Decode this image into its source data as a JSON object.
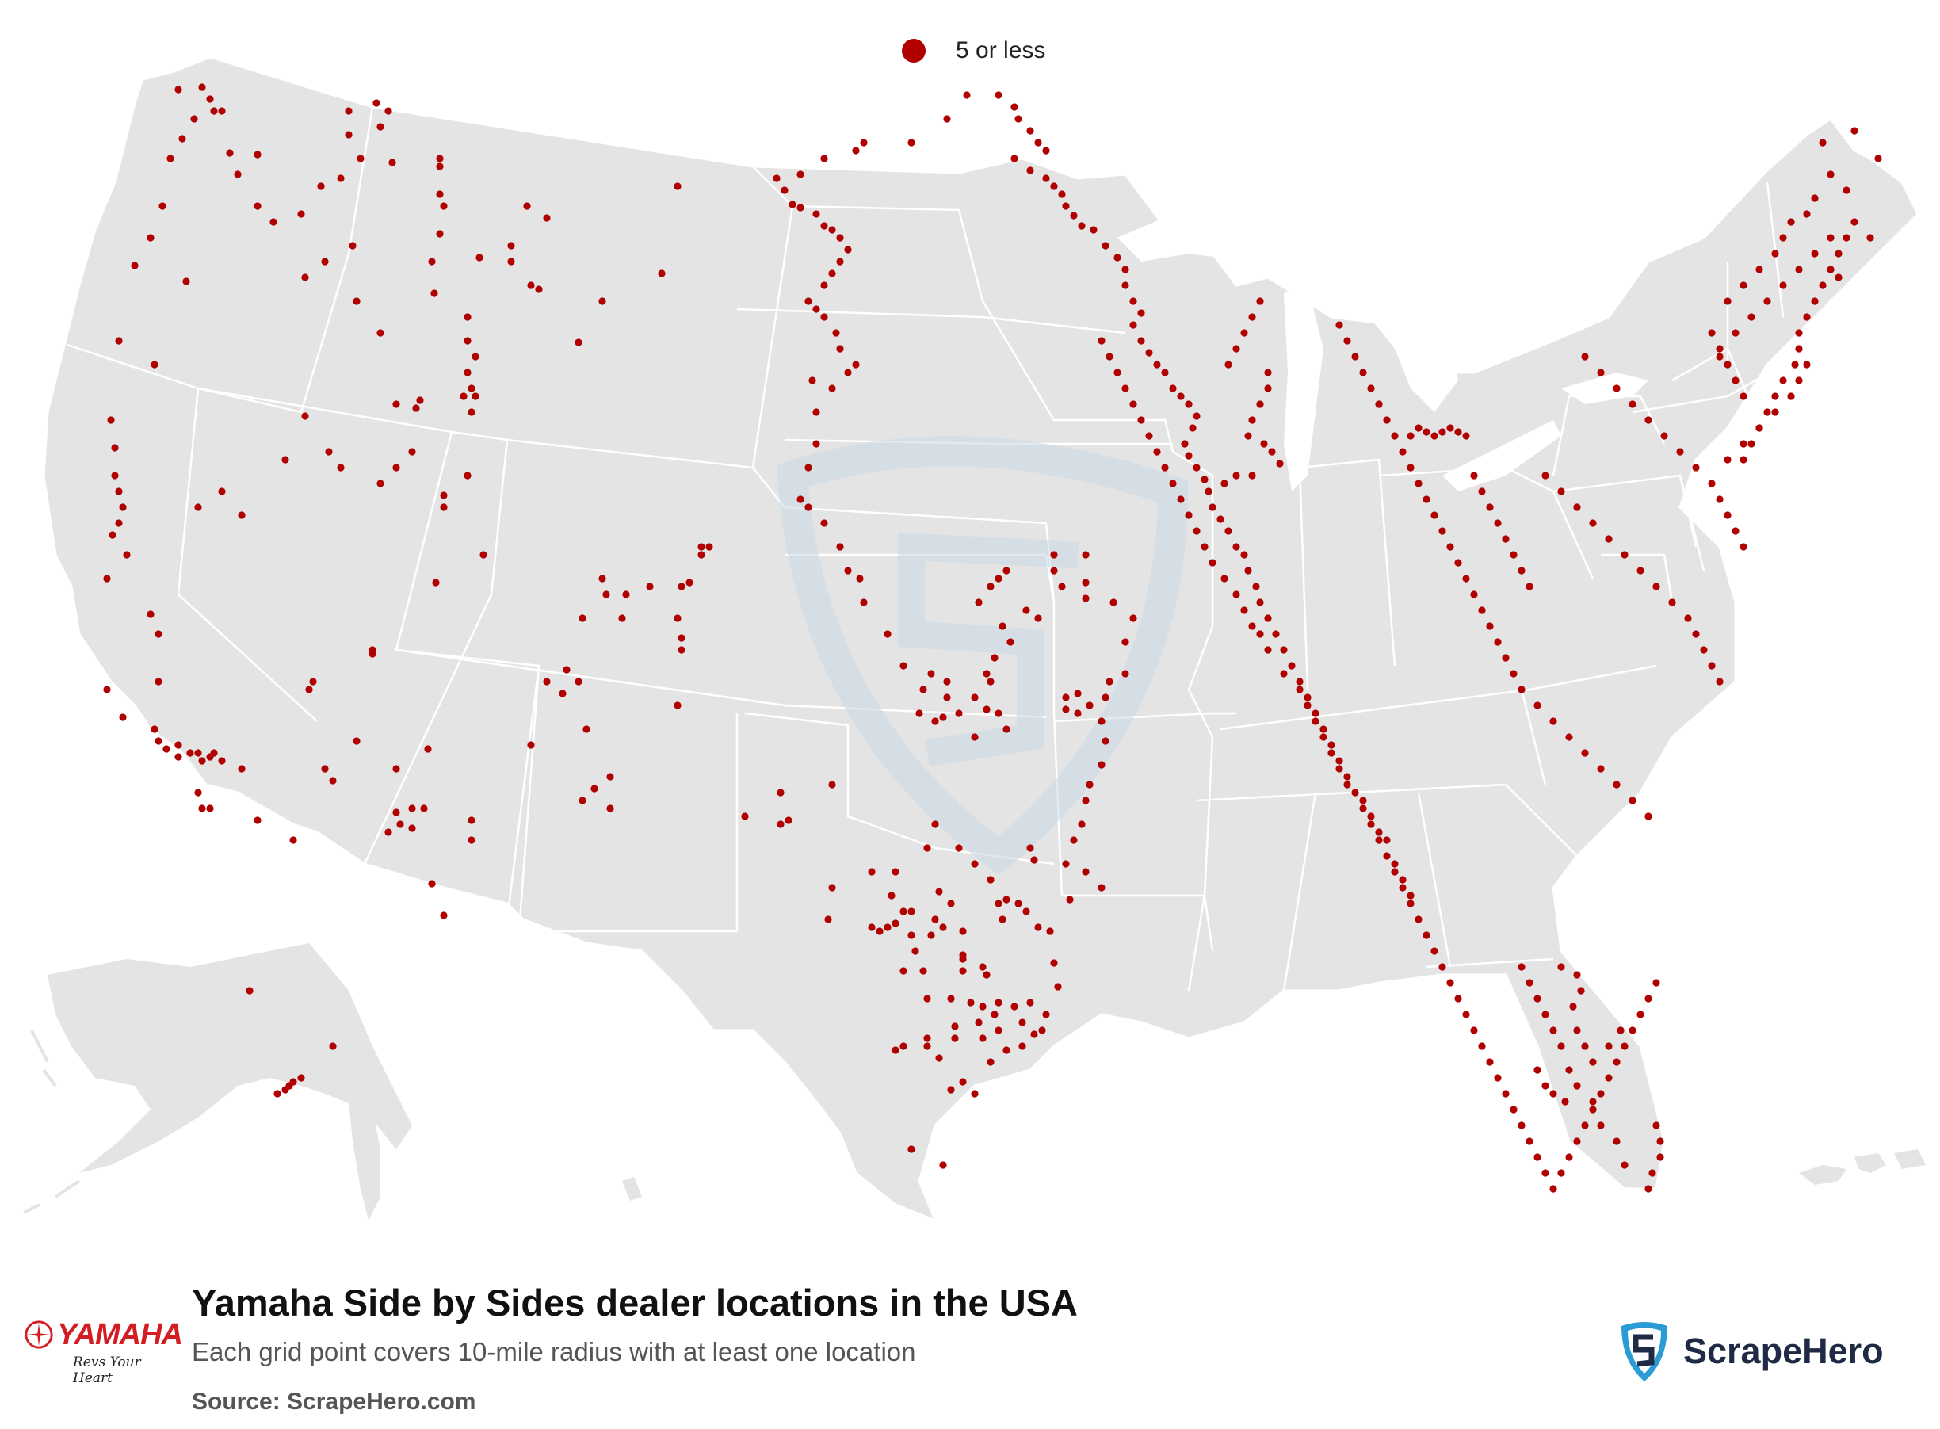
{
  "legend": {
    "marker_label": "5 or less",
    "marker_color": "#b00000"
  },
  "footer": {
    "title": "Yamaha Side by Sides dealer locations in the USA",
    "subtitle": "Each grid point covers 10-mile radius with at least one location",
    "source": "Source: ScrapeHero.com"
  },
  "brand": {
    "name": "YAMAHA",
    "tagline": "Revs Your Heart",
    "color": "#d21d24"
  },
  "publisher": {
    "name": "ScrapeHero",
    "shield_color": "#2b9bd6",
    "text_color": "#1f2a44"
  },
  "colors": {
    "land": "#e4e4e4",
    "borders": "#ffffff",
    "marker": "#b00000",
    "watermark": "#c9d8e6"
  }
}
